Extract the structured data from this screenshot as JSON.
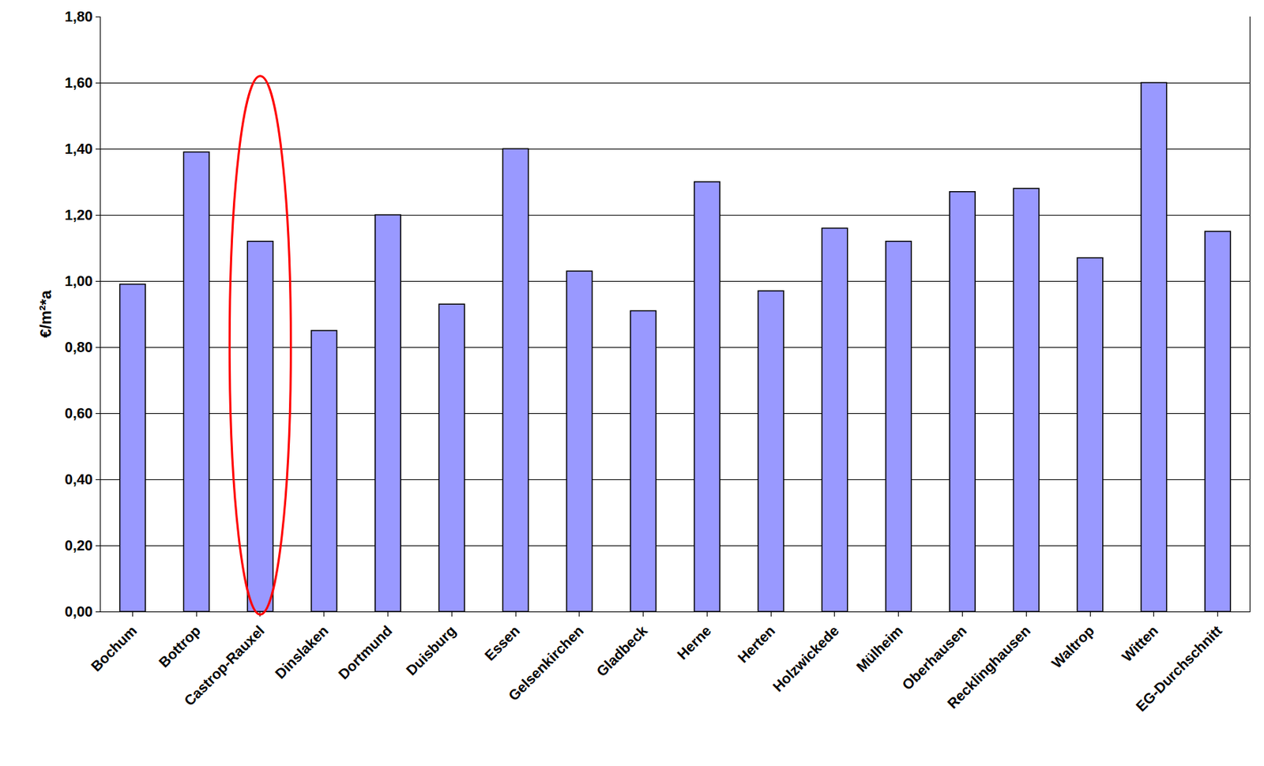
{
  "chart_data": {
    "type": "bar",
    "y_label": "€/m²*a",
    "categories": [
      "Bochum",
      "Bottrop",
      "Castrop-Rauxel",
      "Dinslaken",
      "Dortmund",
      "Duisburg",
      "Essen",
      "Gelsenkirchen",
      "Gladbeck",
      "Herne",
      "Herten",
      "Holzwickede",
      "Mülheim",
      "Oberhausen",
      "Recklinghausen",
      "Waltrop",
      "Witten",
      "EG-Durchschnitt"
    ],
    "values": [
      0.99,
      1.39,
      1.12,
      0.85,
      1.2,
      0.93,
      1.4,
      1.03,
      0.91,
      1.3,
      0.97,
      1.16,
      1.12,
      1.27,
      1.28,
      1.07,
      1.6,
      1.15
    ],
    "color": "#9999ff",
    "ylim": [
      0,
      1.8
    ],
    "yticks": [
      {
        "value": 0,
        "label": "0,00"
      },
      {
        "value": 0.2,
        "label": "0,20"
      },
      {
        "value": 0.4,
        "label": "0,40"
      },
      {
        "value": 0.6,
        "label": "0,60"
      },
      {
        "value": 0.8,
        "label": "0,80"
      },
      {
        "value": 1.0,
        "label": "1,00"
      },
      {
        "value": 1.2,
        "label": "1,20"
      },
      {
        "value": 1.4,
        "label": "1,40"
      },
      {
        "value": 1.6,
        "label": "1,60"
      },
      {
        "value": 1.8,
        "label": "1,80"
      }
    ],
    "grid": true
  }
}
